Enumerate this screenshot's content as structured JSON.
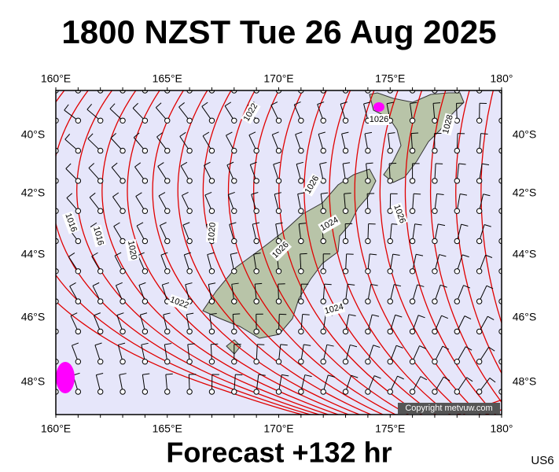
{
  "title": "1800 NZST Tue 26 Aug 2025",
  "lon_labels": [
    "160°E",
    "165°E",
    "170°E",
    "175°E",
    "180°"
  ],
  "lat_labels": [
    "40°S",
    "42°S",
    "44°S",
    "46°S",
    "48°S"
  ],
  "isobar_labels": [
    "1022",
    "1026",
    "1028",
    "1026",
    "1026",
    "1024",
    "1026",
    "1016",
    "1016",
    "1020",
    "1020",
    "1022",
    "1024"
  ],
  "copyright": "Copyright metvuw.com",
  "footer": "Forecast +132 hr",
  "code": "US6"
}
